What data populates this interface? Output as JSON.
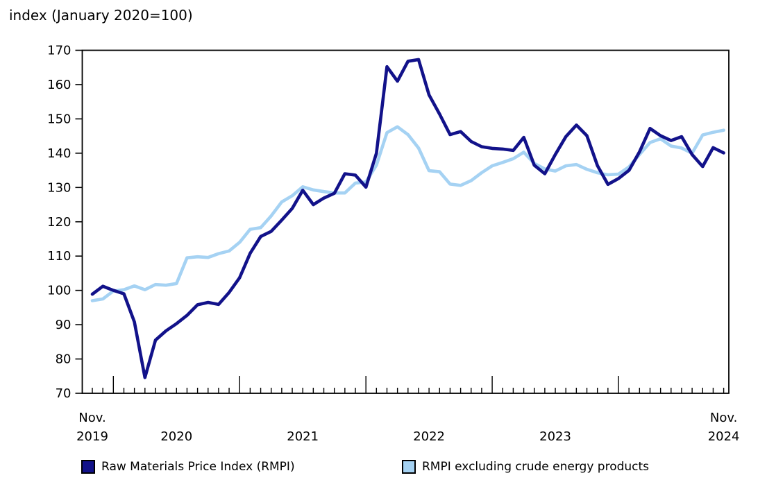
{
  "title": "index (January 2020=100)",
  "colors": {
    "rmpi_line": "#12128A",
    "ex_energy_line": "#A5D2F3",
    "axis": "#000000",
    "text": "#000000",
    "background": "#FFFFFF"
  },
  "chart_data": {
    "type": "line",
    "title": "index (January 2020=100)",
    "grid": false,
    "legend_position": "bottom",
    "ylim": [
      70,
      170
    ],
    "yticks": [
      70,
      80,
      90,
      100,
      110,
      120,
      130,
      140,
      150,
      160,
      170
    ],
    "x": [
      "2019-11",
      "2019-12",
      "2020-01",
      "2020-02",
      "2020-03",
      "2020-04",
      "2020-05",
      "2020-06",
      "2020-07",
      "2020-08",
      "2020-09",
      "2020-10",
      "2020-11",
      "2020-12",
      "2021-01",
      "2021-02",
      "2021-03",
      "2021-04",
      "2021-05",
      "2021-06",
      "2021-07",
      "2021-08",
      "2021-09",
      "2021-10",
      "2021-11",
      "2021-12",
      "2022-01",
      "2022-02",
      "2022-03",
      "2022-04",
      "2022-05",
      "2022-06",
      "2022-07",
      "2022-08",
      "2022-09",
      "2022-10",
      "2022-11",
      "2022-12",
      "2023-01",
      "2023-02",
      "2023-03",
      "2023-04",
      "2023-05",
      "2023-06",
      "2023-07",
      "2023-08",
      "2023-09",
      "2023-10",
      "2023-11",
      "2023-12",
      "2024-01",
      "2024-02",
      "2024-03",
      "2024-04",
      "2024-05",
      "2024-06",
      "2024-07",
      "2024-08",
      "2024-09",
      "2024-10",
      "2024-11"
    ],
    "x_axis_labels": [
      {
        "index": 0,
        "line1": "Nov.",
        "line2": "2019"
      },
      {
        "index": 8,
        "line1": "",
        "line2": "2020"
      },
      {
        "index": 20,
        "line1": "",
        "line2": "2021"
      },
      {
        "index": 32,
        "line1": "",
        "line2": "2022"
      },
      {
        "index": 44,
        "line1": "",
        "line2": "2023"
      },
      {
        "index": 60,
        "line1": "Nov.",
        "line2": "2024"
      }
    ],
    "year_tick_indices": [
      2,
      14,
      26,
      38,
      50
    ],
    "series": [
      {
        "name": "Raw Materials Price Index (RMPI)",
        "color": "#12128A",
        "values": [
          98.9,
          101.2,
          100.0,
          99.0,
          90.8,
          74.6,
          85.5,
          88.2,
          90.3,
          92.7,
          95.8,
          96.5,
          95.9,
          99.4,
          103.7,
          110.8,
          115.7,
          117.2,
          120.5,
          123.9,
          129.2,
          125.0,
          126.9,
          128.3,
          134.0,
          133.6,
          130.1,
          140.0,
          165.2,
          161.0,
          166.8,
          167.3,
          157.0,
          151.4,
          145.4,
          146.3,
          143.4,
          141.9,
          141.4,
          141.2,
          140.8,
          144.6,
          136.5,
          134.0,
          139.6,
          144.8,
          148.2,
          145.1,
          136.4,
          130.9,
          132.6,
          135.0,
          140.4,
          147.2,
          145.1,
          143.7,
          144.8,
          139.6,
          136.1,
          141.6,
          140.1
        ]
      },
      {
        "name": "RMPI excluding crude energy products",
        "color": "#A5D2F3",
        "values": [
          97.0,
          97.5,
          99.8,
          100.2,
          101.3,
          100.2,
          101.7,
          101.5,
          102.0,
          109.5,
          109.8,
          109.6,
          110.7,
          111.5,
          114.0,
          117.8,
          118.3,
          121.7,
          125.8,
          127.6,
          130.2,
          129.3,
          128.8,
          128.4,
          128.4,
          131.3,
          131.6,
          136.5,
          146.0,
          147.7,
          145.4,
          141.5,
          134.9,
          134.6,
          131.0,
          130.6,
          132.0,
          134.3,
          136.3,
          137.3,
          138.4,
          140.3,
          137.0,
          135.4,
          134.8,
          136.3,
          136.7,
          135.3,
          134.3,
          133.7,
          133.9,
          136.0,
          139.6,
          143.1,
          144.2,
          142.1,
          141.5,
          140.0,
          145.3,
          146.1,
          146.7
        ]
      }
    ]
  },
  "legend": {
    "items": [
      {
        "label": "Raw Materials Price Index (RMPI)",
        "color": "#12128A"
      },
      {
        "label": "RMPI excluding crude energy products",
        "color": "#A5D2F3"
      }
    ]
  }
}
